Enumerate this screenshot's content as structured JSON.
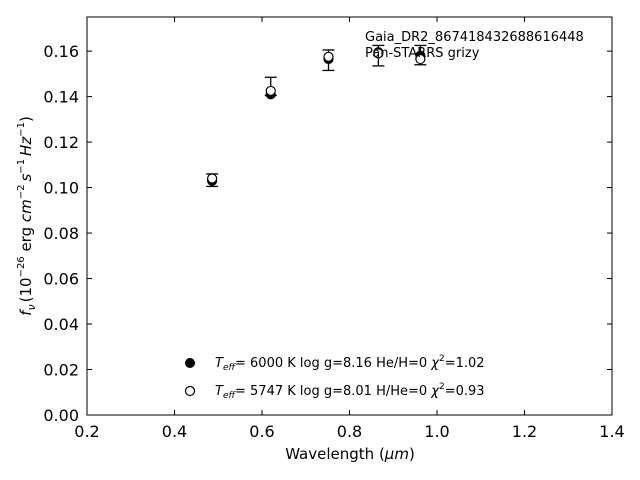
{
  "chart_data": {
    "type": "scatter",
    "xlabel": "Wavelength (",
    "xlabel_unit": "μm",
    "xlabel_close": ")",
    "ylabel_parts": {
      "f": "f",
      "nu": "ν",
      "open": "(10",
      "exp26": "−26",
      "erg": " erg ",
      "cm": "cm",
      "exp2": "−2",
      "s": "s",
      "exp1a": "−1",
      "hz": "Hz",
      "exp1b": "−1",
      "close": ")"
    },
    "xlim": [
      0.2,
      1.4
    ],
    "ylim": [
      0.0,
      0.175
    ],
    "xticks": [
      "0.2",
      "0.4",
      "0.6",
      "0.8",
      "1.0",
      "1.2",
      "1.4"
    ],
    "xtick_values": [
      0.2,
      0.4,
      0.6,
      0.8,
      1.0,
      1.2,
      1.4
    ],
    "yticks": [
      "0.00",
      "0.02",
      "0.04",
      "0.06",
      "0.08",
      "0.10",
      "0.12",
      "0.14",
      "0.16"
    ],
    "ytick_values": [
      0.0,
      0.02,
      0.04,
      0.06,
      0.08,
      0.1,
      0.12,
      0.14,
      0.16
    ],
    "grid": false,
    "annotation": {
      "line1": "Gaia_DR2_867418432688616448",
      "line2": "Pan-STARRS grizy",
      "position": "top-right"
    },
    "observed": [
      {
        "x": 0.486,
        "y": 0.1035,
        "ylo": 0.1005,
        "yhi": 0.106
      },
      {
        "x": 0.62,
        "y": 0.1425,
        "ylo": 0.1405,
        "yhi": 0.1485
      },
      {
        "x": 0.752,
        "y": 0.157,
        "ylo": 0.1515,
        "yhi": 0.1605
      },
      {
        "x": 0.866,
        "y": 0.1585,
        "ylo": 0.1535,
        "yhi": 0.1625
      },
      {
        "x": 0.962,
        "y": 0.157,
        "ylo": 0.154,
        "yhi": 0.1625
      }
    ],
    "series": [
      {
        "marker": "filled",
        "label_teff": "T",
        "label_eff": "eff",
        "label_main": "=  6000 K  log g=8.16  He/H=0  ",
        "label_chi": "χ",
        "label_sq": "2",
        "label_end": "=1.02",
        "points": [
          {
            "x": 0.486,
            "y": 0.103
          },
          {
            "x": 0.62,
            "y": 0.141
          },
          {
            "x": 0.752,
            "y": 0.1565
          },
          {
            "x": 0.866,
            "y": 0.1595
          },
          {
            "x": 0.962,
            "y": 0.158
          }
        ]
      },
      {
        "marker": "open",
        "label_teff": "T",
        "label_eff": "eff",
        "label_main": "=  5747 K  log g=8.01  H/He=0  ",
        "label_chi": "χ",
        "label_sq": "2",
        "label_end": "=0.93",
        "points": [
          {
            "x": 0.486,
            "y": 0.104
          },
          {
            "x": 0.62,
            "y": 0.1425
          },
          {
            "x": 0.752,
            "y": 0.1575
          },
          {
            "x": 0.866,
            "y": 0.159
          },
          {
            "x": 0.962,
            "y": 0.1565
          }
        ]
      }
    ]
  }
}
